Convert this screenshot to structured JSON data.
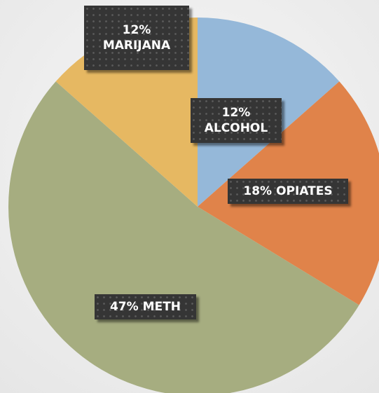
{
  "chart_data": {
    "type": "pie",
    "categories": [
      "ALCOHOL",
      "OPIATES",
      "METH",
      "MARIJANA"
    ],
    "values": [
      12,
      18,
      47,
      12
    ],
    "value_labels": [
      "12%",
      "18%",
      "47%",
      "12%"
    ],
    "colors": [
      "#95b8d9",
      "#e0834a",
      "#a6ad80",
      "#e6b862"
    ]
  }
}
